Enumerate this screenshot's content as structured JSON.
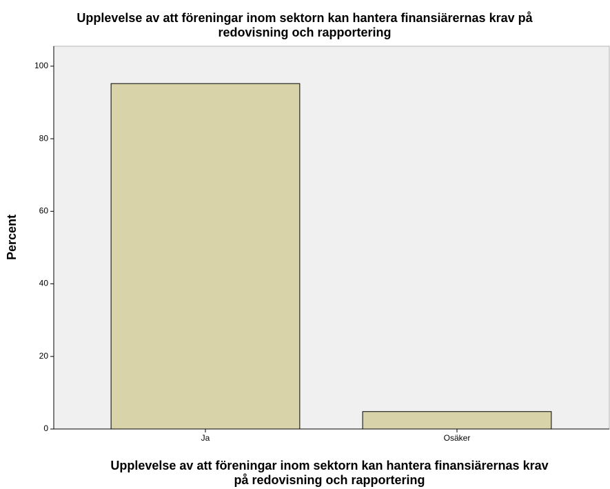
{
  "chart_data": {
    "type": "bar",
    "title": [
      "Upplevelse av att föreningar inom sektorn kan hantera finansiärernas krav på",
      "redovisning och rapportering"
    ],
    "x_label": [
      "Upplevelse av att föreningar inom sektorn kan hantera finansiärernas krav",
      "på redovisning och rapportering"
    ],
    "y_label": "Percent",
    "categories": [
      "Ja",
      "Osäker"
    ],
    "values": [
      95.2,
      4.8
    ],
    "color": "#d8d3a8",
    "ylim": [
      0,
      105.5
    ],
    "yticks": [
      0,
      20,
      40,
      60,
      80,
      100
    ],
    "grid": false
  }
}
